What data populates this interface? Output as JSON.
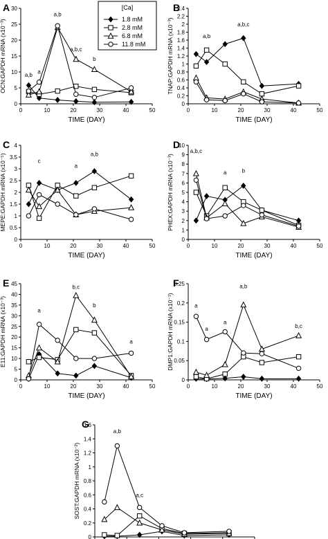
{
  "legend": {
    "title": "[Ca]",
    "entries": [
      {
        "label": "1.8 mM",
        "marker": "diamond-filled"
      },
      {
        "label": "2.8 mM",
        "marker": "square-open"
      },
      {
        "label": "6.8 mM",
        "marker": "triangle-open"
      },
      {
        "label": "11.8 mM",
        "marker": "circle-open"
      }
    ]
  },
  "chart_data": [
    {
      "panel": "A",
      "type": "line",
      "xlabel": "TIME (DAY)",
      "ylabel": "OCN:GAPDH mRNA (x10⁻³)",
      "xlim": [
        0,
        50
      ],
      "xticks": [
        0,
        10,
        20,
        30,
        40,
        50
      ],
      "ylim": [
        0,
        30
      ],
      "yticks": [
        0,
        5,
        10,
        15,
        20,
        25,
        30
      ],
      "series": [
        {
          "name": "1.8 mM",
          "x": [
            3,
            7,
            14,
            21,
            28,
            42
          ],
          "y": [
            5.8,
            1.8,
            1.2,
            0.8,
            0.5,
            0.6
          ]
        },
        {
          "name": "2.8 mM",
          "x": [
            3,
            7,
            14,
            21,
            28,
            42
          ],
          "y": [
            3.8,
            3.0,
            4.0,
            5.5,
            4.5,
            3.5
          ]
        },
        {
          "name": "6.8 mM",
          "x": [
            3,
            7,
            14,
            21,
            28,
            42
          ],
          "y": [
            2.8,
            3.8,
            24.0,
            14.0,
            10.8,
            3.8
          ]
        },
        {
          "name": "11.8 mM",
          "x": [
            3,
            7,
            14,
            21,
            28,
            42
          ],
          "y": [
            4.0,
            6.8,
            24.5,
            3.0,
            2.0,
            5.0
          ]
        }
      ],
      "annotations": [
        {
          "text": "a,b",
          "x": 3,
          "y": 8.5
        },
        {
          "text": "a",
          "x": 7,
          "y": 9.5
        },
        {
          "text": "a,b",
          "x": 14,
          "y": 27.5
        },
        {
          "text": "a,b,c",
          "x": 21,
          "y": 16.5
        },
        {
          "text": "b",
          "x": 28,
          "y": 13.5
        }
      ]
    },
    {
      "panel": "B",
      "type": "line",
      "xlabel": "TIME (DAY)",
      "ylabel": "TNAP:GAPDH mRNA (x10⁻³)",
      "xlim": [
        0,
        50
      ],
      "xticks": [
        0,
        10,
        20,
        30,
        40,
        50
      ],
      "ylim": [
        0,
        2.4
      ],
      "yticks": [
        0,
        0.2,
        0.4,
        0.6,
        0.8,
        1.0,
        1.2,
        1.4,
        1.6,
        1.8,
        2.0,
        2.2,
        2.4
      ],
      "series": [
        {
          "name": "1.8 mM",
          "x": [
            3,
            7,
            14,
            21,
            28,
            42
          ],
          "y": [
            1.25,
            1.05,
            1.5,
            1.65,
            0.45,
            0.5
          ]
        },
        {
          "name": "2.8 mM",
          "x": [
            3,
            7,
            14,
            21,
            28,
            42
          ],
          "y": [
            0.95,
            1.35,
            1.0,
            0.55,
            0.25,
            0.45
          ]
        },
        {
          "name": "6.8 mM",
          "x": [
            3,
            7,
            14,
            21,
            28,
            42
          ],
          "y": [
            0.65,
            0.15,
            0.12,
            0.3,
            0.12,
            0.02
          ]
        },
        {
          "name": "11.8 mM",
          "x": [
            3,
            7,
            14,
            21,
            28,
            42
          ],
          "y": [
            0.55,
            0.1,
            0.08,
            0.25,
            0.05,
            0.02
          ]
        }
      ],
      "annotations": [
        {
          "text": "a,b",
          "x": 7,
          "y": 1.65
        },
        {
          "text": "a,b,c",
          "x": 21,
          "y": 1.95
        }
      ]
    },
    {
      "panel": "C",
      "type": "line",
      "xlabel": "TIME (DAY)",
      "ylabel": "MEPE:GAPDH mRNA (x10⁻⁵)",
      "xlim": [
        0,
        50
      ],
      "xticks": [
        0,
        10,
        20,
        30,
        40,
        50
      ],
      "ylim": [
        0,
        4
      ],
      "yticks": [
        0,
        0.5,
        1.0,
        1.5,
        2.0,
        2.5,
        3.0,
        3.5,
        4.0
      ],
      "series": [
        {
          "name": "1.8 mM",
          "x": [
            3,
            7,
            14,
            21,
            28,
            42
          ],
          "y": [
            1.5,
            2.4,
            2.1,
            2.4,
            2.9,
            1.7
          ]
        },
        {
          "name": "2.8 mM",
          "x": [
            3,
            7,
            14,
            21,
            28,
            42
          ],
          "y": [
            2.3,
            0.9,
            2.3,
            1.85,
            2.2,
            2.7
          ]
        },
        {
          "name": "6.8 mM",
          "x": [
            3,
            7,
            14,
            21,
            28,
            42
          ],
          "y": [
            2.1,
            1.4,
            2.1,
            1.05,
            1.2,
            1.35
          ]
        },
        {
          "name": "11.8 mM",
          "x": [
            3,
            7,
            14,
            21,
            28,
            42
          ],
          "y": [
            1.0,
            1.9,
            1.5,
            1.05,
            1.3,
            0.85
          ]
        }
      ],
      "annotations": [
        {
          "text": "c",
          "x": 7,
          "y": 3.25
        },
        {
          "text": "a",
          "x": 21,
          "y": 3.05
        },
        {
          "text": "a,b",
          "x": 28,
          "y": 3.55
        }
      ]
    },
    {
      "panel": "D",
      "type": "line",
      "xlabel": "TIME (DAY)",
      "ylabel": "PHEX:GAPDH mRNA (x10⁻³)",
      "xlim": [
        0,
        50
      ],
      "xticks": [
        0,
        10,
        20,
        30,
        40,
        50
      ],
      "ylim": [
        0,
        10
      ],
      "yticks": [
        0,
        1,
        2,
        3,
        4,
        5,
        6,
        7,
        8,
        9,
        10
      ],
      "series": [
        {
          "name": "1.8 mM",
          "x": [
            3,
            7,
            14,
            21,
            28,
            42
          ],
          "y": [
            2.0,
            4.6,
            4.2,
            5.7,
            3.1,
            2.0
          ]
        },
        {
          "name": "2.8 mM",
          "x": [
            3,
            7,
            14,
            21,
            28,
            42
          ],
          "y": [
            5.0,
            2.5,
            5.5,
            4.0,
            3.1,
            1.5
          ]
        },
        {
          "name": "6.8 mM",
          "x": [
            3,
            7,
            14,
            21,
            28,
            42
          ],
          "y": [
            7.0,
            2.3,
            3.8,
            1.7,
            2.4,
            1.3
          ]
        },
        {
          "name": "11.8 mM",
          "x": [
            3,
            7,
            14,
            21,
            28,
            42
          ],
          "y": [
            6.3,
            2.2,
            2.5,
            3.6,
            2.6,
            1.4
          ]
        }
      ],
      "annotations": [
        {
          "text": "a,b,c",
          "x": 3,
          "y": 9.2
        },
        {
          "text": "a",
          "x": 14,
          "y": 6.9
        },
        {
          "text": "b",
          "x": 21,
          "y": 7.1
        }
      ]
    },
    {
      "panel": "E",
      "type": "line",
      "xlabel": "TIME (DAY)",
      "ylabel": "E11:GAPDH mRNA (x10⁻³)",
      "xlim": [
        0,
        50
      ],
      "xticks": [
        0,
        10,
        20,
        30,
        40,
        50
      ],
      "ylim": [
        0,
        45
      ],
      "yticks": [
        0,
        5,
        10,
        15,
        20,
        25,
        30,
        35,
        40,
        45
      ],
      "series": [
        {
          "name": "1.8 mM",
          "x": [
            3,
            7,
            14,
            21,
            28,
            42
          ],
          "y": [
            0.5,
            12.0,
            3.0,
            2.0,
            6.5,
            1.0
          ]
        },
        {
          "name": "2.8 mM",
          "x": [
            3,
            7,
            14,
            21,
            28,
            42
          ],
          "y": [
            8.5,
            10.5,
            9.5,
            23.5,
            22.0,
            2.0
          ]
        },
        {
          "name": "6.8 mM",
          "x": [
            3,
            7,
            14,
            21,
            28,
            42
          ],
          "y": [
            2.0,
            15.0,
            8.5,
            39.5,
            28.0,
            1.5
          ]
        },
        {
          "name": "11.8 mM",
          "x": [
            3,
            7,
            14,
            21,
            28,
            42
          ],
          "y": [
            0.5,
            26.0,
            18.5,
            10.0,
            10.0,
            12.5
          ]
        }
      ],
      "annotations": [
        {
          "text": "a",
          "x": 7,
          "y": 31.5
        },
        {
          "text": "b,c",
          "x": 21,
          "y": 42.5
        },
        {
          "text": "b",
          "x": 28,
          "y": 34
        },
        {
          "text": "a",
          "x": 42,
          "y": 17
        }
      ]
    },
    {
      "panel": "F",
      "type": "line",
      "xlabel": "TIME (DAY)",
      "ylabel": "DMP1:GAPDH mRNA (x10⁻¹)",
      "xlim": [
        0,
        50
      ],
      "xticks": [
        0,
        10,
        20,
        30,
        40,
        50
      ],
      "ylim": [
        0,
        0.25
      ],
      "yticks": [
        0,
        0.05,
        0.1,
        0.15,
        0.2,
        0.25
      ],
      "series": [
        {
          "name": "1.8 mM",
          "x": [
            3,
            7,
            14,
            21,
            28,
            42
          ],
          "y": [
            0.003,
            0.002,
            0.004,
            0.008,
            0.003,
            0.003
          ]
        },
        {
          "name": "2.8 mM",
          "x": [
            3,
            7,
            14,
            21,
            28,
            42
          ],
          "y": [
            0.008,
            0.003,
            0.015,
            0.06,
            0.045,
            0.06
          ]
        },
        {
          "name": "6.8 mM",
          "x": [
            3,
            7,
            14,
            21,
            28,
            42
          ],
          "y": [
            0.02,
            0.012,
            0.04,
            0.195,
            0.08,
            0.115
          ]
        },
        {
          "name": "11.8 mM",
          "x": [
            3,
            7,
            14,
            21,
            28,
            42
          ],
          "y": [
            0.165,
            0.105,
            0.125,
            0.07,
            0.068,
            0.03
          ]
        }
      ],
      "annotations": [
        {
          "text": "a",
          "x": 3,
          "y": 0.188
        },
        {
          "text": "a",
          "x": 7,
          "y": 0.128
        },
        {
          "text": "a",
          "x": 14,
          "y": 0.145
        },
        {
          "text": "a,b",
          "x": 21,
          "y": 0.238
        },
        {
          "text": "b,c",
          "x": 42,
          "y": 0.135
        }
      ]
    },
    {
      "panel": "G",
      "type": "line",
      "xlabel": "TIME (DAY)",
      "ylabel": "SOST:GAPDH mRNA (x10⁻²)",
      "xlim": [
        0,
        50
      ],
      "xticks": [
        0,
        10,
        20,
        30,
        40,
        50
      ],
      "ylim": [
        0,
        1.6
      ],
      "yticks": [
        0,
        0.2,
        0.4,
        0.6,
        0.8,
        1.0,
        1.2,
        1.4,
        1.6
      ],
      "series": [
        {
          "name": "1.8 mM",
          "x": [
            3,
            7,
            14,
            21,
            28,
            42
          ],
          "y": [
            0.01,
            0.01,
            0.03,
            0.08,
            0.02,
            0.03
          ]
        },
        {
          "name": "2.8 mM",
          "x": [
            3,
            7,
            14,
            21,
            28,
            42
          ],
          "y": [
            0.03,
            0.02,
            0.3,
            0.12,
            0.05,
            0.06
          ]
        },
        {
          "name": "6.8 mM",
          "x": [
            3,
            7,
            14,
            21,
            28,
            42
          ],
          "y": [
            0.25,
            0.42,
            0.2,
            0.1,
            0.04,
            0.05
          ]
        },
        {
          "name": "11.8 mM",
          "x": [
            3,
            7,
            14,
            21,
            28,
            42
          ],
          "y": [
            0.5,
            1.3,
            0.42,
            0.16,
            0.06,
            0.08
          ]
        }
      ],
      "annotations": [
        {
          "text": "a,b",
          "x": 7,
          "y": 1.48
        },
        {
          "text": "a,c",
          "x": 14,
          "y": 0.57
        }
      ]
    }
  ]
}
